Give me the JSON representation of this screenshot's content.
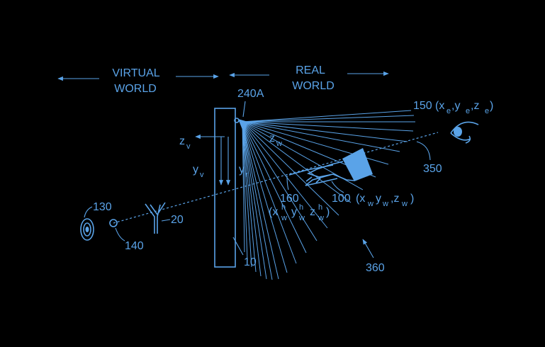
{
  "figure": {
    "colors": {
      "background": "#000000",
      "line": "#5aa3e8"
    },
    "regions": {
      "virtual_line1": "VIRTUAL",
      "virtual_line2": "WORLD",
      "real_line1": "REAL",
      "real_line2": "WORLD"
    },
    "labels": {
      "display": "10",
      "device": "20",
      "target": "130",
      "target_point": "140",
      "camera": "240A",
      "eye_ref": "150",
      "eye_coords_open": "(x",
      "eye_sub_x": "e",
      "eye_comma1": ",y",
      "eye_sub_y": "e",
      "eye_comma2": ",z",
      "eye_sub_z": "e",
      "eye_close": ")",
      "hand_ref": "100",
      "hand_open": "(x",
      "hand_sub_x": "w",
      "hand_y": "y",
      "hand_sub_y": "w",
      "hand_z": ",z",
      "hand_sub_z": "w",
      "hand_close": ")",
      "fingertip_ref": "160",
      "tip_open": "(x",
      "tip_sup_x": "h",
      "tip_sub_x": "w",
      "tip_y": "y",
      "tip_sup_y": "h",
      "tip_sub_y": "w",
      "tip_z": "z",
      "tip_sup_z": "h",
      "tip_sub_z": "w",
      "tip_close": ")",
      "line_ref": "350",
      "fov_ref": "360",
      "axis_zv": "z",
      "axis_zv_sub": "v",
      "axis_yv": "y",
      "axis_yv_sub": "v",
      "axis_yr": "y",
      "axis_yr_sub": "r",
      "axis_zw": "z",
      "axis_zw_sub": "w"
    }
  }
}
